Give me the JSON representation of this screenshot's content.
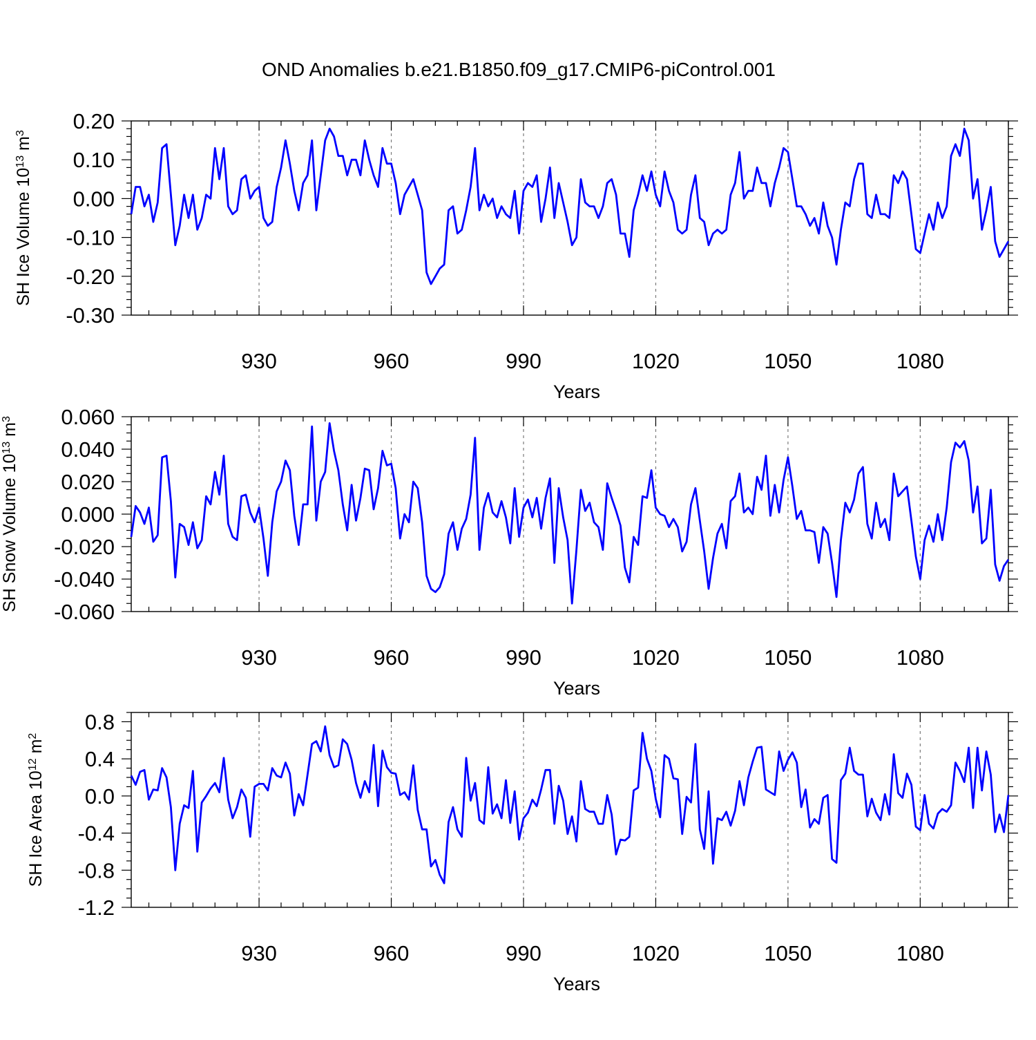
{
  "figure": {
    "title": "OND Anomalies b.e21.B1850.f09_g17.CMIP6-piControl.001",
    "line_color": "#0000ff"
  },
  "chart_data": [
    {
      "type": "line",
      "title": "",
      "xlabel": "Years",
      "ylabel": {
        "prefix": "SH Ice Volume 10",
        "exponent": "13",
        "unit": " m",
        "unit_exp": "3"
      },
      "xlim": [
        901,
        1100
      ],
      "ylim": [
        -0.3,
        0.2
      ],
      "xticks": [
        930,
        960,
        990,
        1020,
        1050,
        1080
      ],
      "xtick_labels": [
        "930",
        "960",
        "990",
        "1020",
        "1050",
        "1080"
      ],
      "yticks": [
        0.2,
        0.1,
        0.0,
        -0.1,
        -0.2,
        -0.3
      ],
      "ytick_labels": [
        "0.20",
        "0.10",
        "0.00",
        "-0.10",
        "-0.20",
        "-0.30"
      ],
      "y_minor_step": 0.02,
      "grid": "vertical dashed at major x ticks",
      "series": [
        {
          "name": "SH Ice Volume",
          "x_start": 901,
          "values": [
            -0.04,
            0.03,
            0.03,
            -0.02,
            0.01,
            -0.06,
            -0.01,
            0.13,
            0.14,
            0.01,
            -0.12,
            -0.07,
            0.01,
            -0.05,
            0.01,
            -0.08,
            -0.05,
            0.01,
            0.0,
            0.13,
            0.05,
            0.13,
            -0.02,
            -0.04,
            -0.03,
            0.05,
            0.06,
            0.0,
            0.02,
            0.03,
            -0.05,
            -0.07,
            -0.06,
            0.03,
            0.08,
            0.15,
            0.09,
            0.02,
            -0.03,
            0.04,
            0.06,
            0.15,
            -0.03,
            0.06,
            0.15,
            0.18,
            0.16,
            0.11,
            0.11,
            0.06,
            0.1,
            0.1,
            0.06,
            0.15,
            0.1,
            0.06,
            0.03,
            0.13,
            0.09,
            0.09,
            0.04,
            -0.04,
            0.01,
            0.03,
            0.05,
            0.01,
            -0.03,
            -0.19,
            -0.22,
            -0.2,
            -0.18,
            -0.17,
            -0.03,
            -0.02,
            -0.09,
            -0.08,
            -0.03,
            0.03,
            0.13,
            -0.03,
            0.01,
            -0.02,
            0.0,
            -0.05,
            -0.02,
            -0.04,
            -0.05,
            0.02,
            -0.09,
            0.02,
            0.04,
            0.03,
            0.06,
            -0.06,
            0.0,
            0.08,
            -0.05,
            0.04,
            -0.01,
            -0.06,
            -0.12,
            -0.1,
            0.05,
            -0.01,
            -0.02,
            -0.02,
            -0.05,
            -0.02,
            0.04,
            0.05,
            0.01,
            -0.09,
            -0.09,
            -0.15,
            -0.03,
            0.01,
            0.06,
            0.02,
            0.07,
            0.01,
            -0.02,
            0.07,
            0.02,
            -0.01,
            -0.08,
            -0.09,
            -0.08,
            0.01,
            0.06,
            -0.05,
            -0.06,
            -0.12,
            -0.09,
            -0.08,
            -0.09,
            -0.08,
            0.01,
            0.04,
            0.12,
            0.0,
            0.02,
            0.02,
            0.08,
            0.04,
            0.04,
            -0.02,
            0.04,
            0.08,
            0.13,
            0.12,
            0.05,
            -0.02,
            -0.02,
            -0.04,
            -0.07,
            -0.05,
            -0.09,
            -0.01,
            -0.07,
            -0.1,
            -0.17,
            -0.08,
            -0.01,
            -0.02,
            0.05,
            0.09,
            0.09,
            -0.04,
            -0.05,
            0.01,
            -0.04,
            -0.04,
            -0.05,
            0.06,
            0.04,
            0.07,
            0.05,
            -0.04,
            -0.13,
            -0.14,
            -0.09,
            -0.04,
            -0.08,
            -0.01,
            -0.05,
            -0.02,
            0.11,
            0.14,
            0.11,
            0.18,
            0.15,
            0.0,
            0.05,
            -0.08,
            -0.03,
            0.03,
            -0.11,
            -0.15,
            -0.13,
            -0.11
          ]
        }
      ]
    },
    {
      "type": "line",
      "title": "",
      "xlabel": "Years",
      "ylabel": {
        "prefix": "SH Snow Volume 10",
        "exponent": "13",
        "unit": " m",
        "unit_exp": "3"
      },
      "xlim": [
        901,
        1100
      ],
      "ylim": [
        -0.06,
        0.06
      ],
      "xticks": [
        930,
        960,
        990,
        1020,
        1050,
        1080
      ],
      "xtick_labels": [
        "930",
        "960",
        "990",
        "1020",
        "1050",
        "1080"
      ],
      "yticks": [
        0.06,
        0.04,
        0.02,
        0.0,
        -0.02,
        -0.04,
        -0.06
      ],
      "ytick_labels": [
        "0.060",
        "0.040",
        "0.020",
        "0.000",
        "-0.020",
        "-0.040",
        "-0.060"
      ],
      "y_minor_step": 0.005,
      "grid": "vertical dashed at major x ticks",
      "series": [
        {
          "name": "SH Snow Volume",
          "x_start": 901,
          "values": [
            -0.014,
            0.005,
            0.001,
            -0.006,
            0.004,
            -0.017,
            -0.013,
            0.035,
            0.036,
            0.008,
            -0.039,
            -0.006,
            -0.008,
            -0.019,
            -0.005,
            -0.021,
            -0.016,
            0.011,
            0.006,
            0.026,
            0.012,
            0.036,
            -0.006,
            -0.014,
            -0.016,
            0.011,
            0.012,
            0.001,
            -0.005,
            0.004,
            -0.015,
            -0.038,
            -0.005,
            0.014,
            0.02,
            0.033,
            0.027,
            -0.001,
            -0.019,
            0.006,
            0.006,
            0.054,
            -0.004,
            0.02,
            0.026,
            0.056,
            0.039,
            0.027,
            0.006,
            -0.01,
            0.018,
            -0.004,
            0.01,
            0.028,
            0.027,
            0.003,
            0.016,
            0.039,
            0.03,
            0.031,
            0.016,
            -0.015,
            0.0,
            -0.005,
            0.02,
            0.016,
            -0.005,
            -0.038,
            -0.046,
            -0.048,
            -0.045,
            -0.037,
            -0.012,
            -0.005,
            -0.022,
            -0.009,
            -0.003,
            0.012,
            0.047,
            -0.022,
            0.004,
            0.013,
            0.001,
            -0.002,
            0.008,
            -0.002,
            -0.018,
            0.016,
            -0.014,
            0.004,
            0.009,
            -0.002,
            0.01,
            -0.009,
            0.01,
            0.022,
            -0.03,
            0.016,
            -0.002,
            -0.016,
            -0.055,
            -0.022,
            0.015,
            0.002,
            0.007,
            -0.005,
            -0.008,
            -0.022,
            0.019,
            0.01,
            0.002,
            -0.007,
            -0.033,
            -0.042,
            -0.014,
            -0.019,
            0.011,
            0.01,
            0.027,
            0.004,
            0.0,
            -0.001,
            -0.008,
            -0.003,
            -0.008,
            -0.023,
            -0.017,
            0.006,
            0.016,
            -0.004,
            -0.023,
            -0.046,
            -0.027,
            -0.012,
            -0.006,
            -0.021,
            0.008,
            0.011,
            0.025,
            0.001,
            0.004,
            0.0,
            0.023,
            0.015,
            0.036,
            -0.001,
            0.018,
            0.001,
            0.021,
            0.035,
            0.017,
            -0.003,
            0.002,
            -0.01,
            -0.01,
            -0.011,
            -0.03,
            -0.008,
            -0.012,
            -0.03,
            -0.051,
            -0.016,
            0.007,
            0.001,
            0.009,
            0.025,
            0.029,
            -0.006,
            -0.015,
            0.007,
            -0.008,
            -0.003,
            -0.016,
            0.025,
            0.011,
            0.014,
            0.017,
            -0.004,
            -0.026,
            -0.04,
            -0.016,
            -0.007,
            -0.017,
            0.0,
            -0.016,
            0.004,
            0.032,
            0.044,
            0.041,
            0.045,
            0.033,
            0.001,
            0.017,
            -0.018,
            -0.015,
            0.015,
            -0.031,
            -0.041,
            -0.032,
            -0.028
          ]
        }
      ]
    },
    {
      "type": "line",
      "title": "",
      "xlabel": "Years",
      "ylabel": {
        "prefix": "SH Ice Area 10",
        "exponent": "12",
        "unit": " m",
        "unit_exp": "2"
      },
      "xlim": [
        901,
        1100
      ],
      "ylim": [
        -1.2,
        0.9
      ],
      "xticks": [
        930,
        960,
        990,
        1020,
        1050,
        1080
      ],
      "xtick_labels": [
        "930",
        "960",
        "990",
        "1020",
        "1050",
        "1080"
      ],
      "yticks": [
        0.8,
        0.4,
        0.0,
        -0.4,
        -0.8,
        -1.2
      ],
      "ytick_labels": [
        "0.8",
        "0.4",
        "0.0",
        "-0.4",
        "-0.8",
        "-1.2"
      ],
      "y_minor_step": 0.1,
      "grid": "vertical dashed at major x ticks",
      "series": [
        {
          "name": "SH Ice Area",
          "x_start": 901,
          "values": [
            0.22,
            0.12,
            0.26,
            0.28,
            -0.04,
            0.07,
            0.06,
            0.3,
            0.2,
            -0.12,
            -0.8,
            -0.3,
            -0.1,
            -0.13,
            0.27,
            -0.6,
            -0.07,
            0.0,
            0.08,
            0.14,
            0.04,
            0.41,
            -0.04,
            -0.24,
            -0.12,
            0.07,
            -0.02,
            -0.44,
            0.1,
            0.13,
            0.13,
            0.06,
            0.3,
            0.22,
            0.2,
            0.36,
            0.24,
            -0.21,
            0.02,
            -0.1,
            0.23,
            0.56,
            0.59,
            0.48,
            0.75,
            0.44,
            0.31,
            0.33,
            0.61,
            0.56,
            0.39,
            0.14,
            -0.02,
            0.16,
            0.04,
            0.55,
            -0.11,
            0.49,
            0.31,
            0.25,
            0.24,
            0.01,
            0.04,
            -0.04,
            0.33,
            -0.15,
            -0.36,
            -0.36,
            -0.76,
            -0.69,
            -0.85,
            -0.94,
            -0.28,
            -0.12,
            -0.36,
            -0.44,
            0.41,
            -0.05,
            0.14,
            -0.26,
            -0.3,
            0.31,
            -0.19,
            -0.09,
            -0.24,
            0.17,
            -0.29,
            0.05,
            -0.47,
            -0.24,
            -0.18,
            -0.04,
            -0.11,
            0.07,
            0.28,
            0.28,
            -0.3,
            0.11,
            -0.05,
            -0.41,
            -0.22,
            -0.49,
            0.16,
            -0.14,
            -0.17,
            -0.17,
            -0.3,
            -0.3,
            0.01,
            -0.2,
            -0.63,
            -0.47,
            -0.48,
            -0.44,
            0.06,
            0.09,
            0.68,
            0.4,
            0.27,
            -0.03,
            -0.23,
            0.44,
            0.4,
            0.19,
            0.18,
            -0.41,
            -0.01,
            -0.07,
            0.56,
            -0.36,
            -0.57,
            0.05,
            -0.73,
            -0.24,
            -0.26,
            -0.17,
            -0.32,
            -0.16,
            0.16,
            -0.1,
            0.2,
            0.37,
            0.52,
            0.53,
            0.07,
            0.04,
            0.01,
            0.48,
            0.27,
            0.39,
            0.47,
            0.36,
            -0.12,
            0.07,
            -0.34,
            -0.25,
            -0.3,
            -0.02,
            0.01,
            -0.68,
            -0.72,
            0.17,
            0.24,
            0.52,
            0.27,
            0.23,
            0.23,
            -0.22,
            -0.03,
            -0.18,
            -0.26,
            0.02,
            -0.2,
            0.45,
            0.03,
            -0.02,
            0.24,
            0.12,
            -0.33,
            -0.37,
            0.01,
            -0.3,
            -0.35,
            -0.19,
            -0.14,
            -0.17,
            -0.1,
            0.36,
            0.27,
            0.15,
            0.52,
            -0.13,
            0.52,
            0.06,
            0.48,
            0.23,
            -0.39,
            -0.2,
            -0.39,
            0.01
          ]
        }
      ]
    }
  ]
}
